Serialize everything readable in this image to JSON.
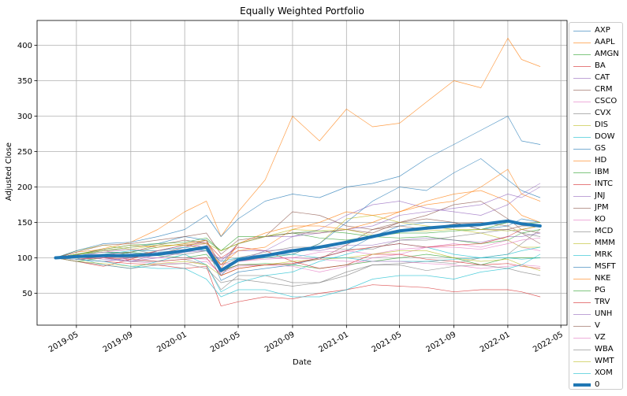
{
  "chart_data": {
    "type": "line",
    "title": "Equally Weighted Portfolio",
    "xlabel": "Date",
    "ylabel": "Adjusted Close",
    "xlim": [
      "2019-02-01",
      "2022-05-15"
    ],
    "ylim": [
      5,
      435
    ],
    "x_ticks": [
      "2019-05",
      "2019-09",
      "2020-01",
      "2020-05",
      "2020-09",
      "2021-01",
      "2021-05",
      "2021-09",
      "2022-01",
      "2022-05"
    ],
    "y_ticks": [
      50,
      100,
      150,
      200,
      250,
      300,
      350,
      400
    ],
    "grid": true,
    "legend_position": "outside right",
    "x": [
      "2019-03-15",
      "2019-05-01",
      "2019-07-01",
      "2019-09-01",
      "2019-11-01",
      "2020-01-01",
      "2020-02-19",
      "2020-03-23",
      "2020-05-01",
      "2020-07-01",
      "2020-09-01",
      "2020-11-01",
      "2021-01-01",
      "2021-03-01",
      "2021-05-01",
      "2021-07-01",
      "2021-09-01",
      "2021-11-01",
      "2022-01-01",
      "2022-02-01",
      "2022-03-15"
    ],
    "series": [
      {
        "name": "AXP",
        "color": "#1f77b4",
        "values": [
          100,
          103,
          108,
          106,
          108,
          111,
          117,
          68,
          80,
          85,
          90,
          100,
          110,
          130,
          145,
          150,
          150,
          140,
          145,
          155,
          150
        ]
      },
      {
        "name": "AAPL",
        "color": "#ff7f0e",
        "values": [
          100,
          104,
          113,
          122,
          140,
          165,
          180,
          130,
          165,
          210,
          300,
          265,
          310,
          285,
          290,
          320,
          350,
          340,
          410,
          380,
          370
        ]
      },
      {
        "name": "AMGN",
        "color": "#2ca02c",
        "values": [
          100,
          95,
          100,
          108,
          115,
          120,
          125,
          110,
          130,
          130,
          135,
          128,
          125,
          130,
          128,
          130,
          125,
          120,
          125,
          135,
          140
        ]
      },
      {
        "name": "BA",
        "color": "#d62728",
        "values": [
          100,
          98,
          95,
          92,
          90,
          85,
          88,
          32,
          38,
          45,
          42,
          50,
          55,
          62,
          60,
          58,
          52,
          55,
          55,
          52,
          45
        ]
      },
      {
        "name": "CAT",
        "color": "#9467bd",
        "values": [
          100,
          102,
          98,
          95,
          105,
          112,
          110,
          80,
          95,
          110,
          130,
          140,
          160,
          175,
          180,
          170,
          165,
          160,
          175,
          190,
          205
        ]
      },
      {
        "name": "CRM",
        "color": "#8c564b",
        "values": [
          100,
          98,
          102,
          100,
          105,
          115,
          125,
          90,
          120,
          130,
          165,
          160,
          145,
          140,
          150,
          160,
          175,
          180,
          155,
          140,
          135
        ]
      },
      {
        "name": "CSCO",
        "color": "#e377c2",
        "values": [
          100,
          104,
          112,
          95,
          92,
          92,
          95,
          78,
          88,
          90,
          88,
          80,
          88,
          100,
          105,
          115,
          120,
          115,
          125,
          115,
          110
        ]
      },
      {
        "name": "CVX",
        "color": "#7f7f7f",
        "values": [
          100,
          98,
          100,
          95,
          95,
          98,
          90,
          55,
          75,
          75,
          65,
          65,
          80,
          90,
          92,
          95,
          92,
          100,
          105,
          120,
          140
        ]
      },
      {
        "name": "DIS",
        "color": "#bcbd22",
        "values": [
          100,
          110,
          118,
          112,
          118,
          118,
          112,
          80,
          95,
          100,
          105,
          120,
          155,
          160,
          150,
          145,
          140,
          135,
          125,
          115,
          115
        ]
      },
      {
        "name": "DOW",
        "color": "#17becf",
        "values": [
          100,
          100,
          90,
          85,
          95,
          105,
          90,
          52,
          65,
          75,
          80,
          95,
          105,
          115,
          120,
          115,
          105,
          100,
          105,
          110,
          115
        ]
      },
      {
        "name": "GS",
        "color": "#1f77b4",
        "values": [
          100,
          105,
          110,
          115,
          120,
          130,
          125,
          75,
          100,
          105,
          105,
          120,
          150,
          180,
          200,
          195,
          220,
          240,
          210,
          195,
          185
        ]
      },
      {
        "name": "HD",
        "color": "#ff7f0e",
        "values": [
          100,
          108,
          112,
          118,
          115,
          120,
          125,
          85,
          120,
          135,
          145,
          145,
          140,
          150,
          165,
          175,
          180,
          200,
          225,
          190,
          180
        ]
      },
      {
        "name": "IBM",
        "color": "#2ca02c",
        "values": [
          100,
          105,
          108,
          108,
          103,
          100,
          105,
          82,
          90,
          92,
          90,
          85,
          90,
          95,
          100,
          105,
          100,
          90,
          100,
          100,
          100
        ]
      },
      {
        "name": "INTC",
        "color": "#d62728",
        "values": [
          100,
          95,
          88,
          98,
          110,
          118,
          122,
          100,
          115,
          110,
          95,
          85,
          90,
          105,
          105,
          98,
          95,
          90,
          92,
          88,
          85
        ]
      },
      {
        "name": "JNJ",
        "color": "#9467bd",
        "values": [
          100,
          98,
          100,
          95,
          100,
          108,
          110,
          98,
          110,
          110,
          112,
          110,
          118,
          118,
          125,
          128,
          125,
          122,
          130,
          130,
          135
        ]
      },
      {
        "name": "JPM",
        "color": "#8c564b",
        "values": [
          100,
          102,
          105,
          108,
          118,
          125,
          120,
          80,
          90,
          90,
          92,
          98,
          118,
          140,
          145,
          140,
          148,
          150,
          145,
          135,
          120
        ]
      },
      {
        "name": "KO",
        "color": "#e377c2",
        "values": [
          100,
          102,
          108,
          112,
          110,
          115,
          120,
          85,
          95,
          100,
          100,
          108,
          110,
          105,
          112,
          115,
          115,
          112,
          120,
          125,
          128
        ]
      },
      {
        "name": "MCD",
        "color": "#7f7f7f",
        "values": [
          100,
          105,
          110,
          112,
          105,
          105,
          110,
          90,
          100,
          108,
          115,
          115,
          112,
          112,
          125,
          125,
          130,
          135,
          140,
          135,
          130
        ]
      },
      {
        "name": "MMM",
        "color": "#bcbd22",
        "values": [
          100,
          95,
          92,
          88,
          92,
          95,
          90,
          75,
          85,
          90,
          95,
          98,
          100,
          105,
          110,
          110,
          100,
          95,
          98,
          90,
          82
        ]
      },
      {
        "name": "MRK",
        "color": "#17becf",
        "values": [
          100,
          100,
          105,
          110,
          110,
          115,
          110,
          95,
          100,
          100,
          105,
          100,
          100,
          95,
          95,
          95,
          98,
          100,
          100,
          98,
          100
        ]
      },
      {
        "name": "MSFT",
        "color": "#1f77b4",
        "values": [
          100,
          110,
          120,
          122,
          130,
          140,
          160,
          130,
          155,
          180,
          190,
          185,
          200,
          205,
          215,
          240,
          260,
          280,
          300,
          265,
          260
        ]
      },
      {
        "name": "NKE",
        "color": "#ff7f0e",
        "values": [
          100,
          98,
          100,
          102,
          110,
          118,
          115,
          90,
          110,
          115,
          140,
          150,
          165,
          160,
          165,
          180,
          190,
          195,
          180,
          160,
          150
        ]
      },
      {
        "name": "PG",
        "color": "#2ca02c",
        "values": [
          100,
          105,
          112,
          118,
          120,
          122,
          128,
          110,
          120,
          130,
          135,
          138,
          135,
          130,
          135,
          135,
          138,
          140,
          150,
          148,
          150
        ]
      },
      {
        "name": "TRV",
        "color": "#d62728",
        "values": [
          100,
          98,
          100,
          98,
          95,
          98,
          100,
          75,
          85,
          90,
          92,
          100,
          110,
          115,
          120,
          115,
          118,
          120,
          130,
          140,
          145
        ]
      },
      {
        "name": "UNH",
        "color": "#9467bd",
        "values": [
          100,
          98,
          95,
          100,
          110,
          118,
          115,
          95,
          120,
          130,
          130,
          135,
          140,
          145,
          160,
          165,
          170,
          175,
          190,
          185,
          200
        ]
      },
      {
        "name": "V",
        "color": "#8c564b",
        "values": [
          100,
          108,
          118,
          120,
          125,
          130,
          135,
          105,
          125,
          130,
          135,
          135,
          140,
          135,
          150,
          155,
          150,
          140,
          140,
          145,
          145
        ]
      },
      {
        "name": "VZ",
        "color": "#e377c2",
        "values": [
          100,
          98,
          100,
          102,
          100,
          100,
          98,
          90,
          95,
          98,
          100,
          98,
          95,
          95,
          95,
          92,
          90,
          85,
          88,
          90,
          88
        ]
      },
      {
        "name": "WBA",
        "color": "#7f7f7f",
        "values": [
          100,
          95,
          90,
          85,
          90,
          92,
          85,
          65,
          70,
          65,
          60,
          65,
          75,
          90,
          90,
          82,
          88,
          90,
          85,
          80,
          75
        ]
      },
      {
        "name": "WMT",
        "color": "#bcbd22",
        "values": [
          100,
          105,
          110,
          115,
          118,
          118,
          120,
          110,
          120,
          130,
          140,
          138,
          140,
          132,
          138,
          138,
          140,
          140,
          138,
          140,
          145
        ]
      },
      {
        "name": "XOM",
        "color": "#17becf",
        "values": [
          100,
          98,
          95,
          88,
          85,
          85,
          70,
          45,
          55,
          55,
          45,
          45,
          55,
          70,
          75,
          75,
          70,
          80,
          85,
          90,
          105
        ]
      },
      {
        "name": "0",
        "color": "#1f77b4",
        "values": [
          100,
          102,
          103,
          103,
          105,
          110,
          115,
          82,
          97,
          103,
          110,
          115,
          122,
          130,
          138,
          142,
          145,
          147,
          152,
          148,
          145
        ]
      }
    ]
  }
}
